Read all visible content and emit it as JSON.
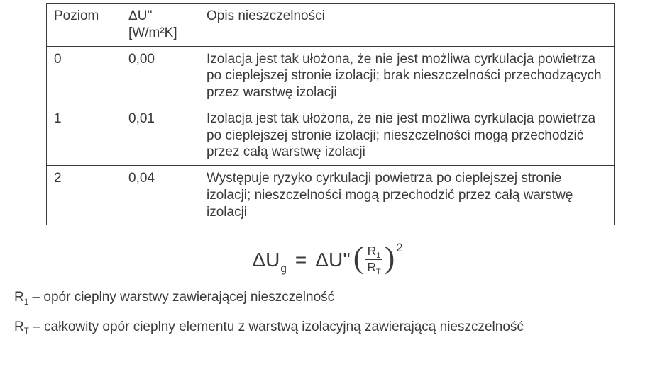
{
  "table": {
    "border_color": "#3a3a3a",
    "columns": [
      {
        "key": "poziom",
        "header_line1": "Poziom",
        "header_line2": ""
      },
      {
        "key": "deltau",
        "header_line1": "ΔU''",
        "header_line2": "[W/m²K]"
      },
      {
        "key": "opis",
        "header_line1": "Opis nieszczelności",
        "header_line2": ""
      }
    ],
    "rows": [
      {
        "poziom": "0",
        "deltau": "0,00",
        "opis": "Izolacja jest tak ułożona, że nie jest możliwa cyrkulacja powietrza po cieplejszej stronie izolacji; brak nieszczelności przechodzących przez warstwę izolacji"
      },
      {
        "poziom": "1",
        "deltau": "0,01",
        "opis": "Izolacja jest tak ułożona, że nie jest możliwa cyrkulacja powietrza po cieplejszej stronie izolacji; nieszczelności mogą przechodzić przez całą warstwę izolacji"
      },
      {
        "poziom": "2",
        "deltau": "0,04",
        "opis": "Występuje ryzyko cyrkulacji powietrza po cieplejszej stronie izolacji; nieszczelności mogą przechodzić przez całą warstwę izolacji"
      }
    ]
  },
  "formula": {
    "lhs_main": "ΔU",
    "lhs_sub": "g",
    "equals": "=",
    "rhs_coeff": "ΔU''",
    "frac_num_main": "R",
    "frac_num_sub": "1",
    "frac_den_main": "R",
    "frac_den_sub": "T",
    "power": "2"
  },
  "definitions": [
    {
      "sym_main": "R",
      "sym_sub": "1",
      "text": " – opór cieplny warstwy zawierającej nieszczelność"
    },
    {
      "sym_main": "R",
      "sym_sub": "T",
      "text": " – całkowity opór cieplny elementu z warstwą izolacyjną zawierającą nieszczelność"
    }
  ],
  "colors": {
    "page_bg": "#ffffff",
    "text": "#3a3a3a"
  }
}
